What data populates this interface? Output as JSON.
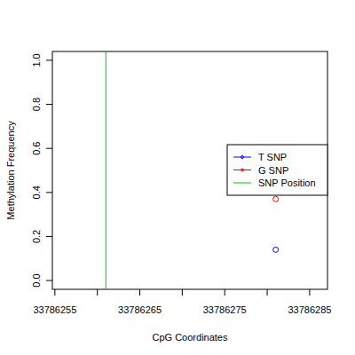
{
  "chart_data": {
    "type": "scatter",
    "x_label": "CpG Coordinates",
    "y_label": "Methylation Frequency",
    "xlim": [
      33786254.7,
      33786287.1
    ],
    "ylim": [
      -0.04,
      1.04
    ],
    "xticks": [
      33786255,
      {
        "value": 33786260,
        "label": null
      },
      33786265,
      {
        "value": 33786270,
        "label": null
      },
      33786275,
      {
        "value": 33786280,
        "label": null
      },
      33786285
    ],
    "yticks": [
      {
        "value": 0,
        "label": "0.0"
      },
      {
        "value": 0.2,
        "label": "0.2"
      },
      {
        "value": 0.4,
        "label": "0.4"
      },
      {
        "value": 0.6,
        "label": "0.6"
      },
      {
        "value": 0.8,
        "label": "0.8"
      },
      {
        "value": 1,
        "label": "1.0"
      }
    ],
    "legend": "right",
    "marker": "circle",
    "series": [
      {
        "name": "T SNP",
        "color": "#0000ff",
        "x": [
          33786281
        ],
        "values": [
          0.14
        ]
      },
      {
        "name": "G SNP",
        "color": "#ff0000",
        "x": [
          33786281
        ],
        "values": [
          0.37
        ]
      },
      {
        "name": "SNP Position",
        "color": "#00cc00",
        "type": "vline",
        "x": [
          33786261
        ]
      }
    ]
  }
}
